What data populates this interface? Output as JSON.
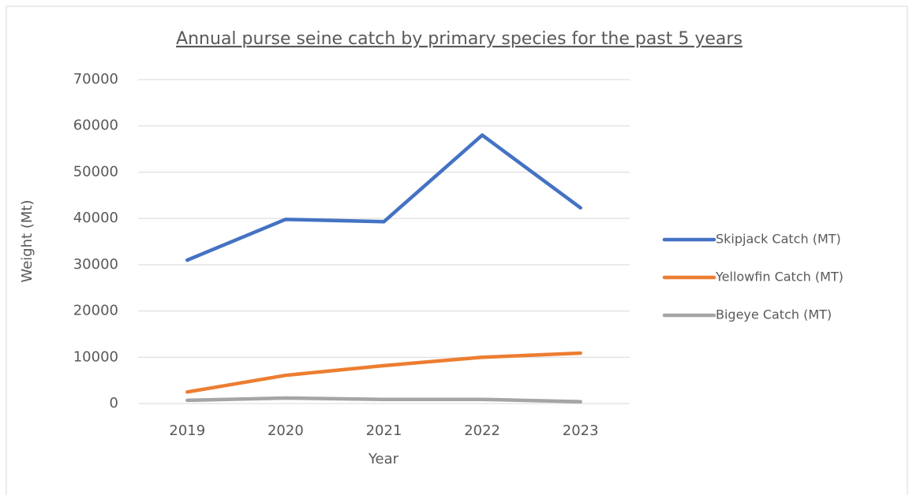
{
  "chart_data": {
    "type": "line",
    "title": "Annual purse seine catch by primary species for the past 5 years",
    "x_label": "Year",
    "y_label": "Weight (Mt)",
    "categories": [
      "2019",
      "2020",
      "2021",
      "2022",
      "2023"
    ],
    "series": [
      {
        "name": "Skipjack Catch (MT)",
        "color": "#4472c4",
        "values": [
          31000,
          39800,
          39300,
          58000,
          42300
        ]
      },
      {
        "name": "Yellowfin Catch (MT)",
        "color": "#ed7d31",
        "values": [
          2500,
          6100,
          8200,
          10000,
          10900
        ]
      },
      {
        "name": "Bigeye Catch (MT)",
        "color": "#a5a5a5",
        "values": [
          700,
          1200,
          900,
          900,
          400
        ]
      }
    ],
    "ylim": [
      0,
      70000
    ],
    "yticks": [
      0,
      10000,
      20000,
      30000,
      40000,
      50000,
      60000,
      70000
    ],
    "grid": true,
    "legend": "right"
  }
}
